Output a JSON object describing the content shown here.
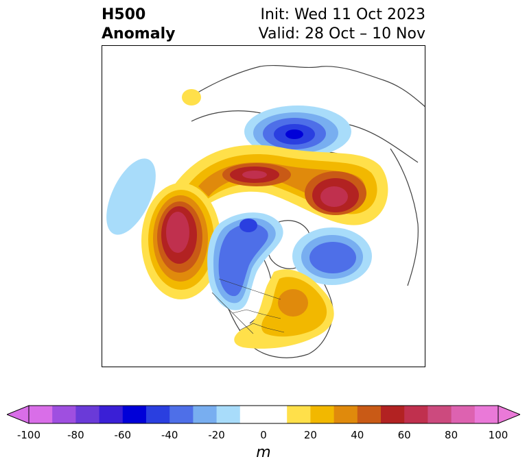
{
  "title": {
    "left_line1": "H500",
    "left_line2": "Anomaly",
    "right_line1": "Init: Wed 11 Oct 2023",
    "right_line2": "Valid: 28 Oct – 10 Nov"
  },
  "colorbar": {
    "unit": "m",
    "ticks": [
      "-100",
      "-80",
      "-60",
      "-40",
      "-20",
      "0",
      "20",
      "40",
      "60",
      "80",
      "100"
    ],
    "colors": [
      "#d96ee8",
      "#9f4fe0",
      "#6a3ad8",
      "#3a1fd6",
      "#0000d8",
      "#2a3fe0",
      "#4e6fe8",
      "#78aef0",
      "#a8dcfa",
      "#ffffff",
      "#ffffff",
      "#ffe04a",
      "#f2b800",
      "#e08a0c",
      "#c95a16",
      "#b22222",
      "#c0304e",
      "#cc4a7e",
      "#dd62b0",
      "#ea79d8"
    ]
  },
  "anomalies": [
    {
      "name": "positive-anomaly-nw-canada",
      "sign": "positive"
    },
    {
      "name": "positive-anomaly-north-pacific",
      "sign": "positive"
    },
    {
      "name": "positive-anomaly-north-atlantic-greenland",
      "sign": "positive"
    },
    {
      "name": "positive-anomaly-eastern-us",
      "sign": "positive"
    },
    {
      "name": "negative-anomaly-north-atlantic",
      "sign": "negative"
    },
    {
      "name": "negative-anomaly-western-us",
      "sign": "negative"
    },
    {
      "name": "negative-anomaly-siberia",
      "sign": "negative"
    }
  ]
}
